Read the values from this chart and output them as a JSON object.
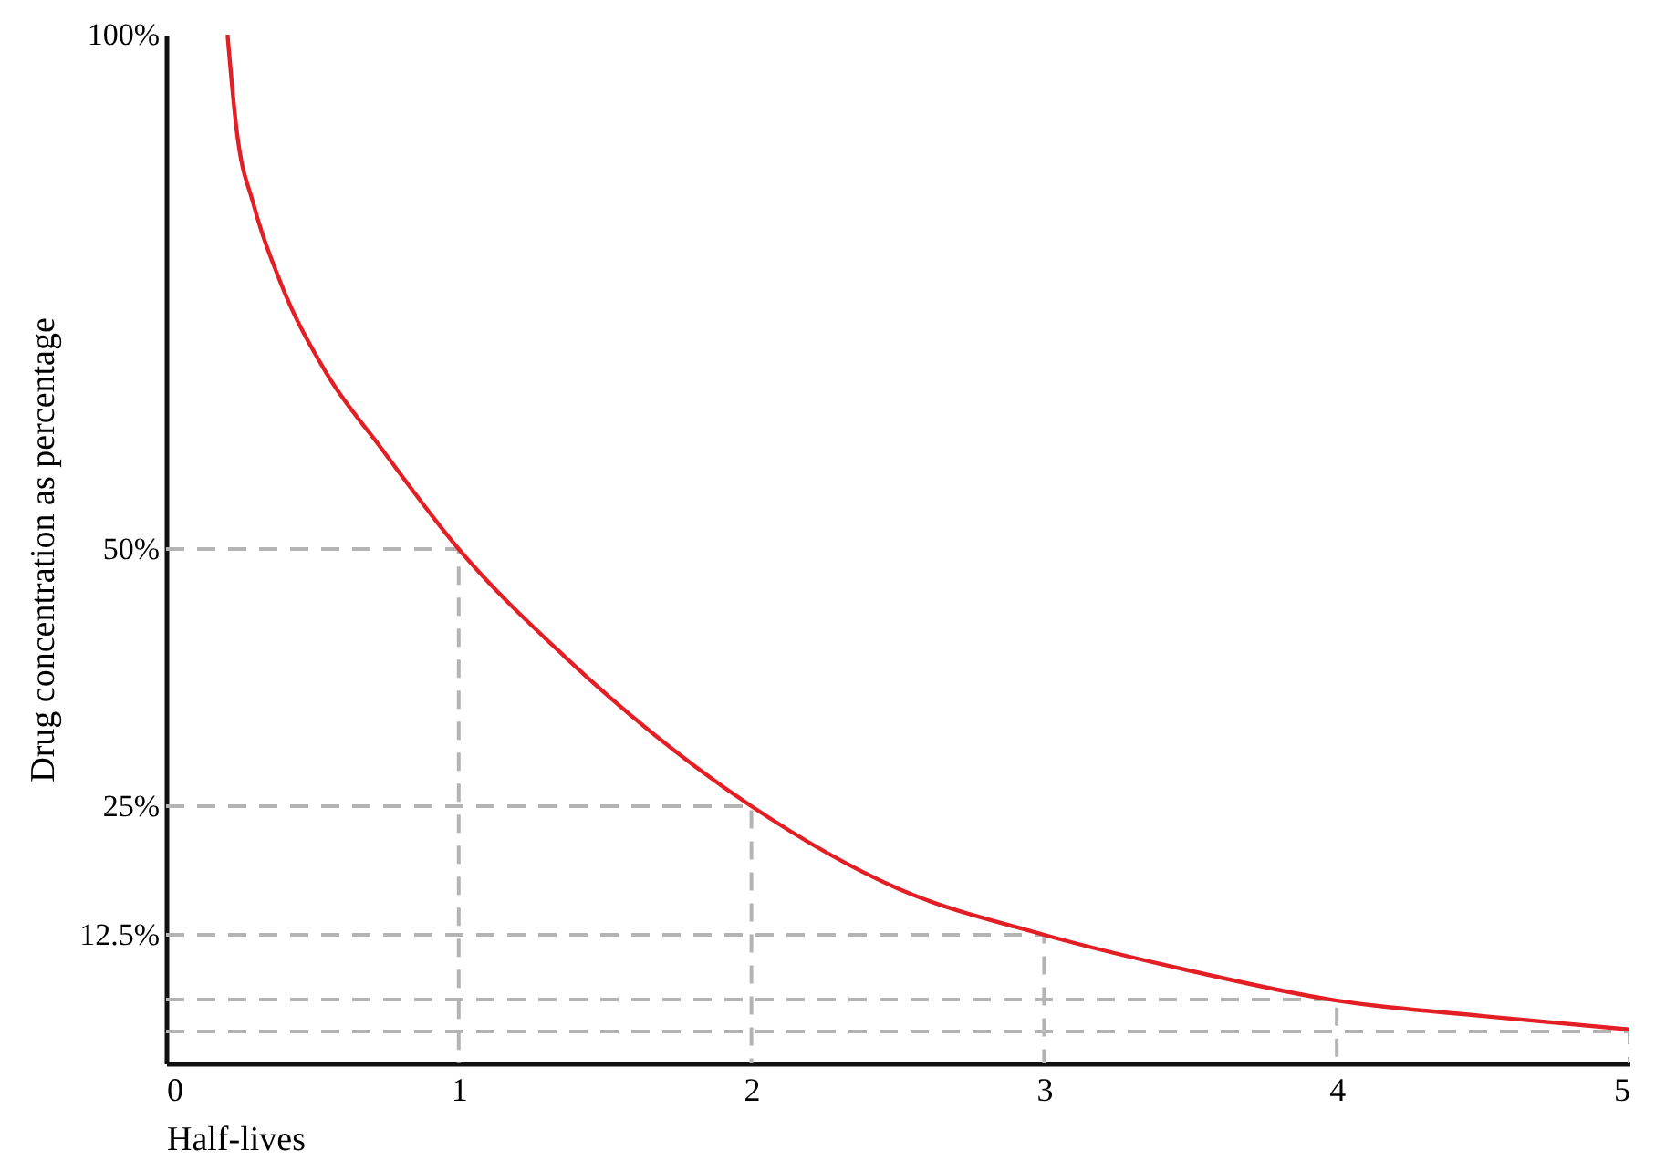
{
  "chart_data": {
    "type": "line",
    "xlabel": "Half-lives",
    "ylabel": "Drug concentration as percentage",
    "xlim": [
      0,
      5
    ],
    "ylim": [
      0,
      100
    ],
    "xticks": [
      0,
      1,
      2,
      3,
      4,
      5
    ],
    "yticks": [
      {
        "value": 12.5,
        "label": "12.5%"
      },
      {
        "value": 25,
        "label": "25%"
      },
      {
        "value": 50,
        "label": "50%"
      },
      {
        "value": 100,
        "label": "100%"
      }
    ],
    "grid": false,
    "series": [
      {
        "color": "#b4b4b4",
        "line_style": "dashed",
        "x": [
          0,
          1,
          1
        ],
        "values": [
          50,
          50,
          0
        ]
      },
      {
        "color": "#b4b4b4",
        "line_style": "dashed",
        "x": [
          0,
          2,
          2
        ],
        "values": [
          25,
          25,
          0
        ]
      },
      {
        "color": "#b4b4b4",
        "line_style": "dashed",
        "x": [
          0,
          3,
          3
        ],
        "values": [
          12.5,
          12.5,
          0
        ]
      },
      {
        "color": "#b4b4b4",
        "line_style": "dashed",
        "x": [
          0,
          4,
          4
        ],
        "values": [
          6.2,
          6.2,
          0
        ]
      },
      {
        "color": "#b4b4b4",
        "line_style": "dashed",
        "x": [
          0,
          5,
          5
        ],
        "values": [
          3.1,
          3.1,
          0
        ]
      },
      {
        "color": "#e31e24",
        "line_style": "solid",
        "x": [
          0.21,
          0.24,
          0.3,
          0.39,
          0.55,
          0.73,
          1,
          1.36,
          2,
          2.5,
          3,
          3.5,
          4,
          4.5,
          5
        ],
        "values": [
          100,
          91,
          83.4,
          76,
          67,
          60,
          50,
          39.6,
          25,
          17,
          12.5,
          9,
          6.1,
          4.6,
          3.3
        ]
      }
    ]
  }
}
